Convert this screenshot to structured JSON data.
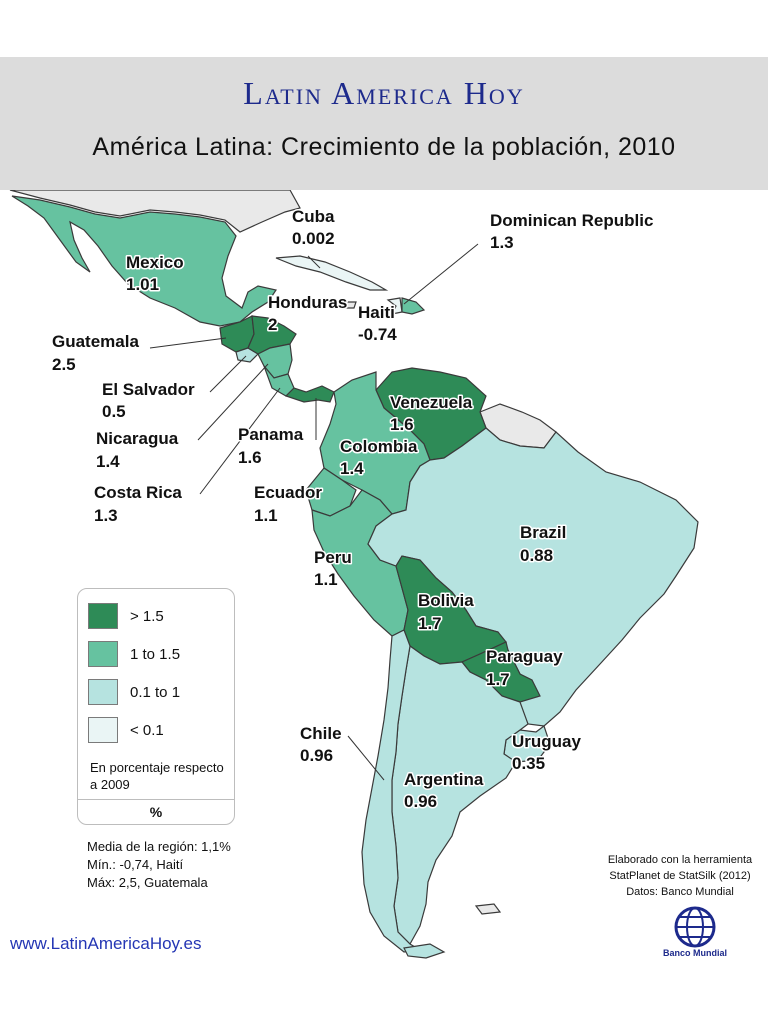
{
  "header": {
    "brand": "Latin America Hoy",
    "subtitle": "América Latina: Crecimiento de la población, 2010"
  },
  "colors": {
    "gt_1_5": "#2e8b57",
    "1_to_1_5": "#66c2a0",
    "0_1_to_1": "#b6e3e0",
    "lt_0_1": "#eaf5f5",
    "no_data": "#e9e9e9",
    "water": "#ffffff"
  },
  "countries": [
    {
      "name": "Mexico",
      "value": "1.01",
      "class": "1_to_1_5"
    },
    {
      "name": "Cuba",
      "value": "0.002",
      "class": "lt_0_1"
    },
    {
      "name": "Dominican Republic",
      "value": "1.3",
      "class": "1_to_1_5"
    },
    {
      "name": "Haiti",
      "value": "-0.74",
      "class": "lt_0_1"
    },
    {
      "name": "Honduras",
      "value": "2",
      "class": "gt_1_5"
    },
    {
      "name": "Guatemala",
      "value": "2.5",
      "class": "gt_1_5"
    },
    {
      "name": "El Salvador",
      "value": "0.5",
      "class": "0_1_to_1"
    },
    {
      "name": "Nicaragua",
      "value": "1.4",
      "class": "1_to_1_5"
    },
    {
      "name": "Panama",
      "value": "1.6",
      "class": "gt_1_5"
    },
    {
      "name": "Costa Rica",
      "value": "1.3",
      "class": "1_to_1_5"
    },
    {
      "name": "Venezuela",
      "value": "1.6",
      "class": "gt_1_5"
    },
    {
      "name": "Colombia",
      "value": "1.4",
      "class": "1_to_1_5"
    },
    {
      "name": "Ecuador",
      "value": "1.1",
      "class": "1_to_1_5"
    },
    {
      "name": "Peru",
      "value": "1.1",
      "class": "1_to_1_5"
    },
    {
      "name": "Brazil",
      "value": "0.88",
      "class": "0_1_to_1"
    },
    {
      "name": "Bolivia",
      "value": "1.7",
      "class": "gt_1_5"
    },
    {
      "name": "Paraguay",
      "value": "1.7",
      "class": "gt_1_5"
    },
    {
      "name": "Chile",
      "value": "0.96",
      "class": "0_1_to_1"
    },
    {
      "name": "Argentina",
      "value": "0.96",
      "class": "0_1_to_1"
    },
    {
      "name": "Uruguay",
      "value": "0.35",
      "class": "0_1_to_1"
    }
  ],
  "legend": {
    "items": [
      {
        "label": "> 1.5",
        "class": "gt_1_5"
      },
      {
        "label": "1 to 1.5",
        "class": "1_to_1_5"
      },
      {
        "label": "0.1 to 1",
        "class": "0_1_to_1"
      },
      {
        "label": "< 0.1",
        "class": "lt_0_1"
      }
    ],
    "note": "En porcentaje respecto a 2009",
    "unit": "%"
  },
  "stats": {
    "mean": "Media de la región: 1,1%",
    "min": "Mín.: -0,74, Haití",
    "max": "Máx: 2,5, Guatemala"
  },
  "credits": {
    "line1": "Elaborado con la herramienta",
    "line2": "StatPlanet de StatSilk (2012)",
    "line3": "Datos: Banco Mundial"
  },
  "logo": {
    "text": "Banco Mundial",
    "icon": "world-bank-globe-icon"
  },
  "website": "www.LatinAmericaHoy.es"
}
